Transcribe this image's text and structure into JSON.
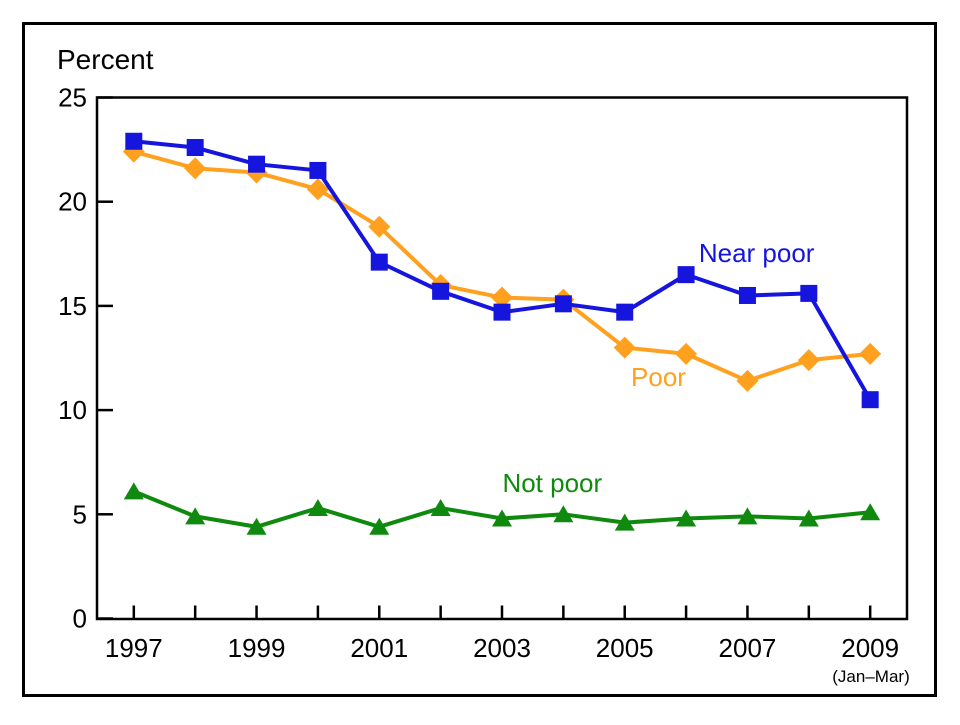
{
  "chart_data": {
    "type": "line",
    "title": "Percent",
    "axis_note": "(Jan–Mar)",
    "xlabel": "",
    "ylabel": "Percent",
    "grid": false,
    "legend": "inline-labels",
    "x": [
      1997,
      1998,
      1999,
      2000,
      2001,
      2002,
      2003,
      2004,
      2005,
      2006,
      2007,
      2008,
      2009
    ],
    "x_labeled_ticks": [
      1997,
      1999,
      2001,
      2003,
      2005,
      2007,
      2009
    ],
    "y_ticks": [
      0,
      5,
      10,
      15,
      20,
      25
    ],
    "xlim": [
      1996.4,
      2009.6
    ],
    "ylim": [
      0,
      25
    ],
    "series": [
      {
        "name": "Not poor",
        "color": "#0f8a0f",
        "marker": "triangle",
        "values": [
          6.1,
          4.9,
          4.4,
          5.3,
          4.4,
          5.3,
          4.8,
          5.0,
          4.6,
          4.8,
          4.9,
          4.8,
          5.1
        ]
      },
      {
        "name": "Poor",
        "color": "#ffa01e",
        "marker": "diamond",
        "values": [
          22.4,
          21.6,
          21.4,
          20.6,
          18.8,
          16.0,
          15.4,
          15.3,
          13.0,
          12.7,
          11.4,
          12.4,
          12.7
        ]
      },
      {
        "name": "Near poor",
        "color": "#1515dd",
        "marker": "square",
        "values": [
          22.9,
          22.6,
          21.8,
          21.5,
          17.1,
          15.7,
          14.7,
          15.1,
          14.7,
          16.5,
          15.5,
          15.6,
          10.5
        ]
      }
    ],
    "annotations": [
      {
        "text": "Near poor",
        "x": 2007.15,
        "y": 17.1,
        "color": "#1515dd"
      },
      {
        "text": "Poor",
        "x": 2005.55,
        "y": 11.15,
        "color": "#ffa01e"
      },
      {
        "text": "Not poor",
        "x": 2003.82,
        "y": 6.07,
        "color": "#0f8a0f"
      }
    ]
  }
}
